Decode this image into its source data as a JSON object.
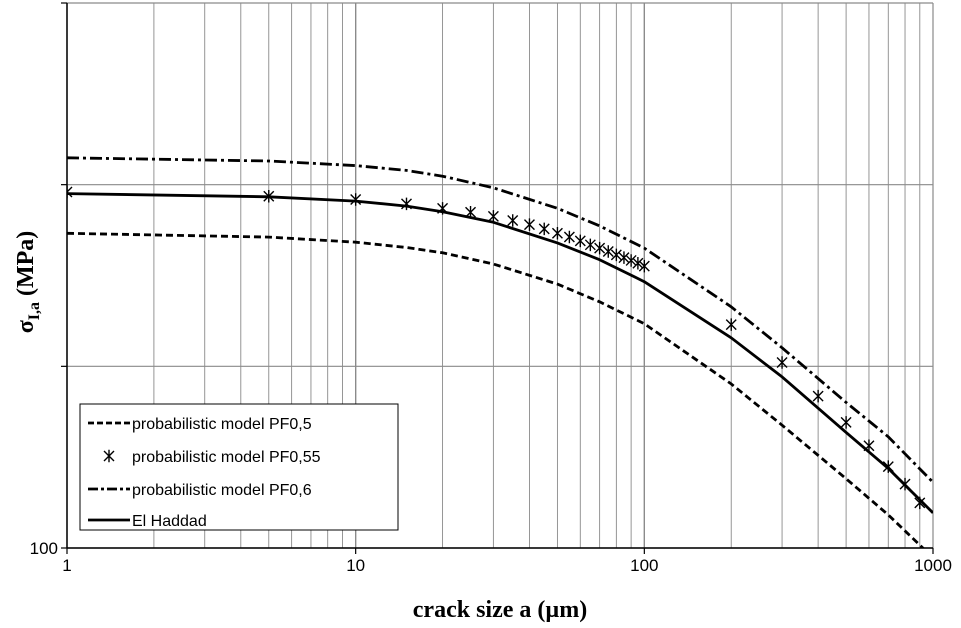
{
  "chart_data": {
    "type": "line",
    "title": "",
    "xlabel": "crack size a (µm)",
    "ylabel_main": "σ",
    "ylabel_sub": "I,a",
    "ylabel_unit": " (MPa)",
    "x_scale": "log",
    "y_scale": "log",
    "xlim": [
      1,
      1000
    ],
    "ylim": [
      100,
      1000
    ],
    "x_ticks": [
      "1",
      "10",
      "100",
      "1000"
    ],
    "y_ticks": [
      "100",
      "",
      "",
      ""
    ],
    "grid": true,
    "legend_position": "bottom-left",
    "series": [
      {
        "name": "probabilistic model PF0,5",
        "style": "dashed",
        "marker": "none",
        "x": [
          1,
          5,
          10,
          15,
          20,
          30,
          50,
          70,
          100,
          200,
          300,
          500,
          700,
          1000
        ],
        "y": [
          378,
          372,
          364,
          356,
          348,
          332,
          305,
          283,
          258,
          200,
          168,
          134,
          115,
          96
        ]
      },
      {
        "name": "probabilistic model PF0,55",
        "style": "none",
        "marker": "star",
        "x": [
          1,
          5,
          10,
          15,
          20,
          25,
          30,
          35,
          40,
          45,
          50,
          55,
          60,
          65,
          70,
          75,
          80,
          85,
          90,
          95,
          100,
          200,
          300,
          400,
          500,
          600,
          700,
          800,
          900
        ],
        "y": [
          450,
          442,
          436,
          428,
          420,
          413,
          406,
          399,
          392,
          385,
          378,
          372,
          366,
          360,
          355,
          350,
          345,
          341,
          337,
          333,
          329,
          257,
          219,
          190,
          170,
          154,
          141,
          131,
          121
        ]
      },
      {
        "name": "probabilistic model PF0,6",
        "style": "dashdot",
        "marker": "none",
        "x": [
          1,
          5,
          10,
          15,
          20,
          30,
          50,
          70,
          100,
          200,
          300,
          500,
          700,
          1000
        ],
        "y": [
          520,
          513,
          503,
          493,
          481,
          458,
          420,
          390,
          355,
          277,
          233,
          185,
          160,
          132
        ]
      },
      {
        "name": "El Haddad",
        "style": "solid",
        "marker": "none",
        "x": [
          1,
          5,
          10,
          15,
          20,
          30,
          50,
          70,
          100,
          200,
          300,
          500,
          700,
          1000
        ],
        "y": [
          447,
          441,
          433,
          424,
          414,
          396,
          363,
          338,
          308,
          243,
          206,
          163,
          140,
          116
        ]
      }
    ]
  }
}
